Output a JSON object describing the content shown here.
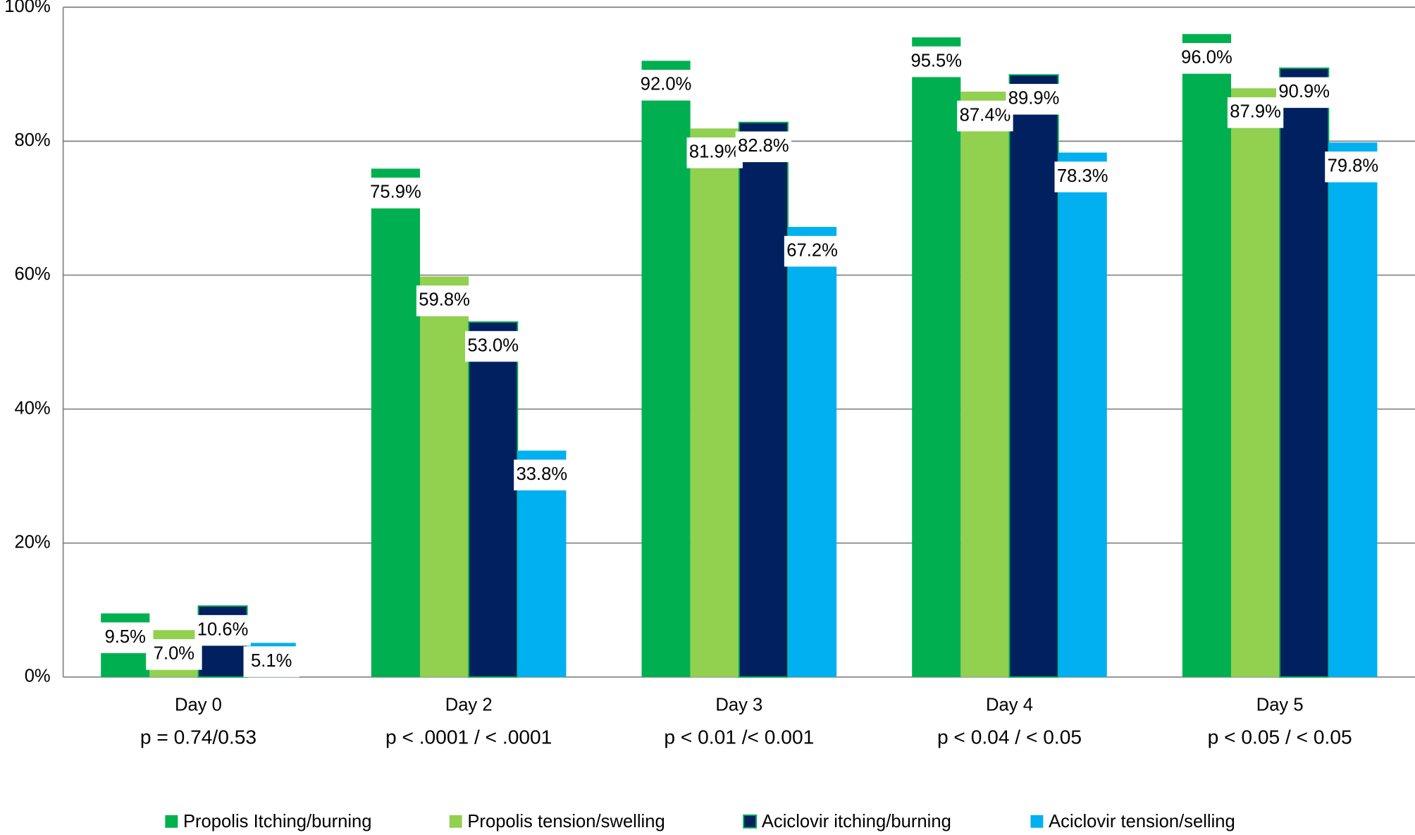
{
  "chart_data": {
    "type": "bar",
    "categories": [
      "Day 0",
      "Day 2",
      "Day 3",
      "Day 4",
      "Day 5"
    ],
    "category_notes": [
      "p = 0.74/0.53",
      "p < .0001 / < .0001",
      "p < 0.01 /< 0.001",
      "p < 0.04 / < 0.05",
      "p < 0.05 / < 0.05"
    ],
    "series": [
      {
        "name": "Propolis Itching/burning",
        "color": "#00b050",
        "values": [
          9.5,
          75.9,
          92.0,
          95.5,
          96.0
        ],
        "value_labels": [
          "9.5%",
          "75.9%",
          "92.0%",
          "95.5%",
          "96.0%"
        ]
      },
      {
        "name": "Propolis tension/swelling",
        "color": "#92d050",
        "values": [
          7.0,
          59.8,
          81.9,
          87.4,
          87.9
        ],
        "value_labels": [
          "7.0%",
          "59.8%",
          "81.9%",
          "87.4%",
          "87.9%"
        ]
      },
      {
        "name": "Aciclovir itching/burning",
        "color": "#002060",
        "values": [
          10.6,
          53.0,
          82.8,
          89.9,
          90.9
        ],
        "value_labels": [
          "10.6%",
          "53.0%",
          "82.8%",
          "89.9%",
          "90.9%"
        ]
      },
      {
        "name": "Aciclovir tension/selling",
        "color": "#00b0f0",
        "values": [
          5.1,
          33.8,
          67.2,
          78.3,
          79.8
        ],
        "value_labels": [
          "5.1%",
          "33.8%",
          "67.2%",
          "78.3%",
          "79.8%"
        ]
      }
    ],
    "ylim": [
      0,
      100
    ],
    "yticks": [
      {
        "value": 0,
        "label": "0%"
      },
      {
        "value": 20,
        "label": "20%"
      },
      {
        "value": 40,
        "label": "40%"
      },
      {
        "value": 60,
        "label": "60%"
      },
      {
        "value": 80,
        "label": "80%"
      },
      {
        "value": 100,
        "label": "100%"
      }
    ],
    "grid": true,
    "legend": "bottom"
  }
}
